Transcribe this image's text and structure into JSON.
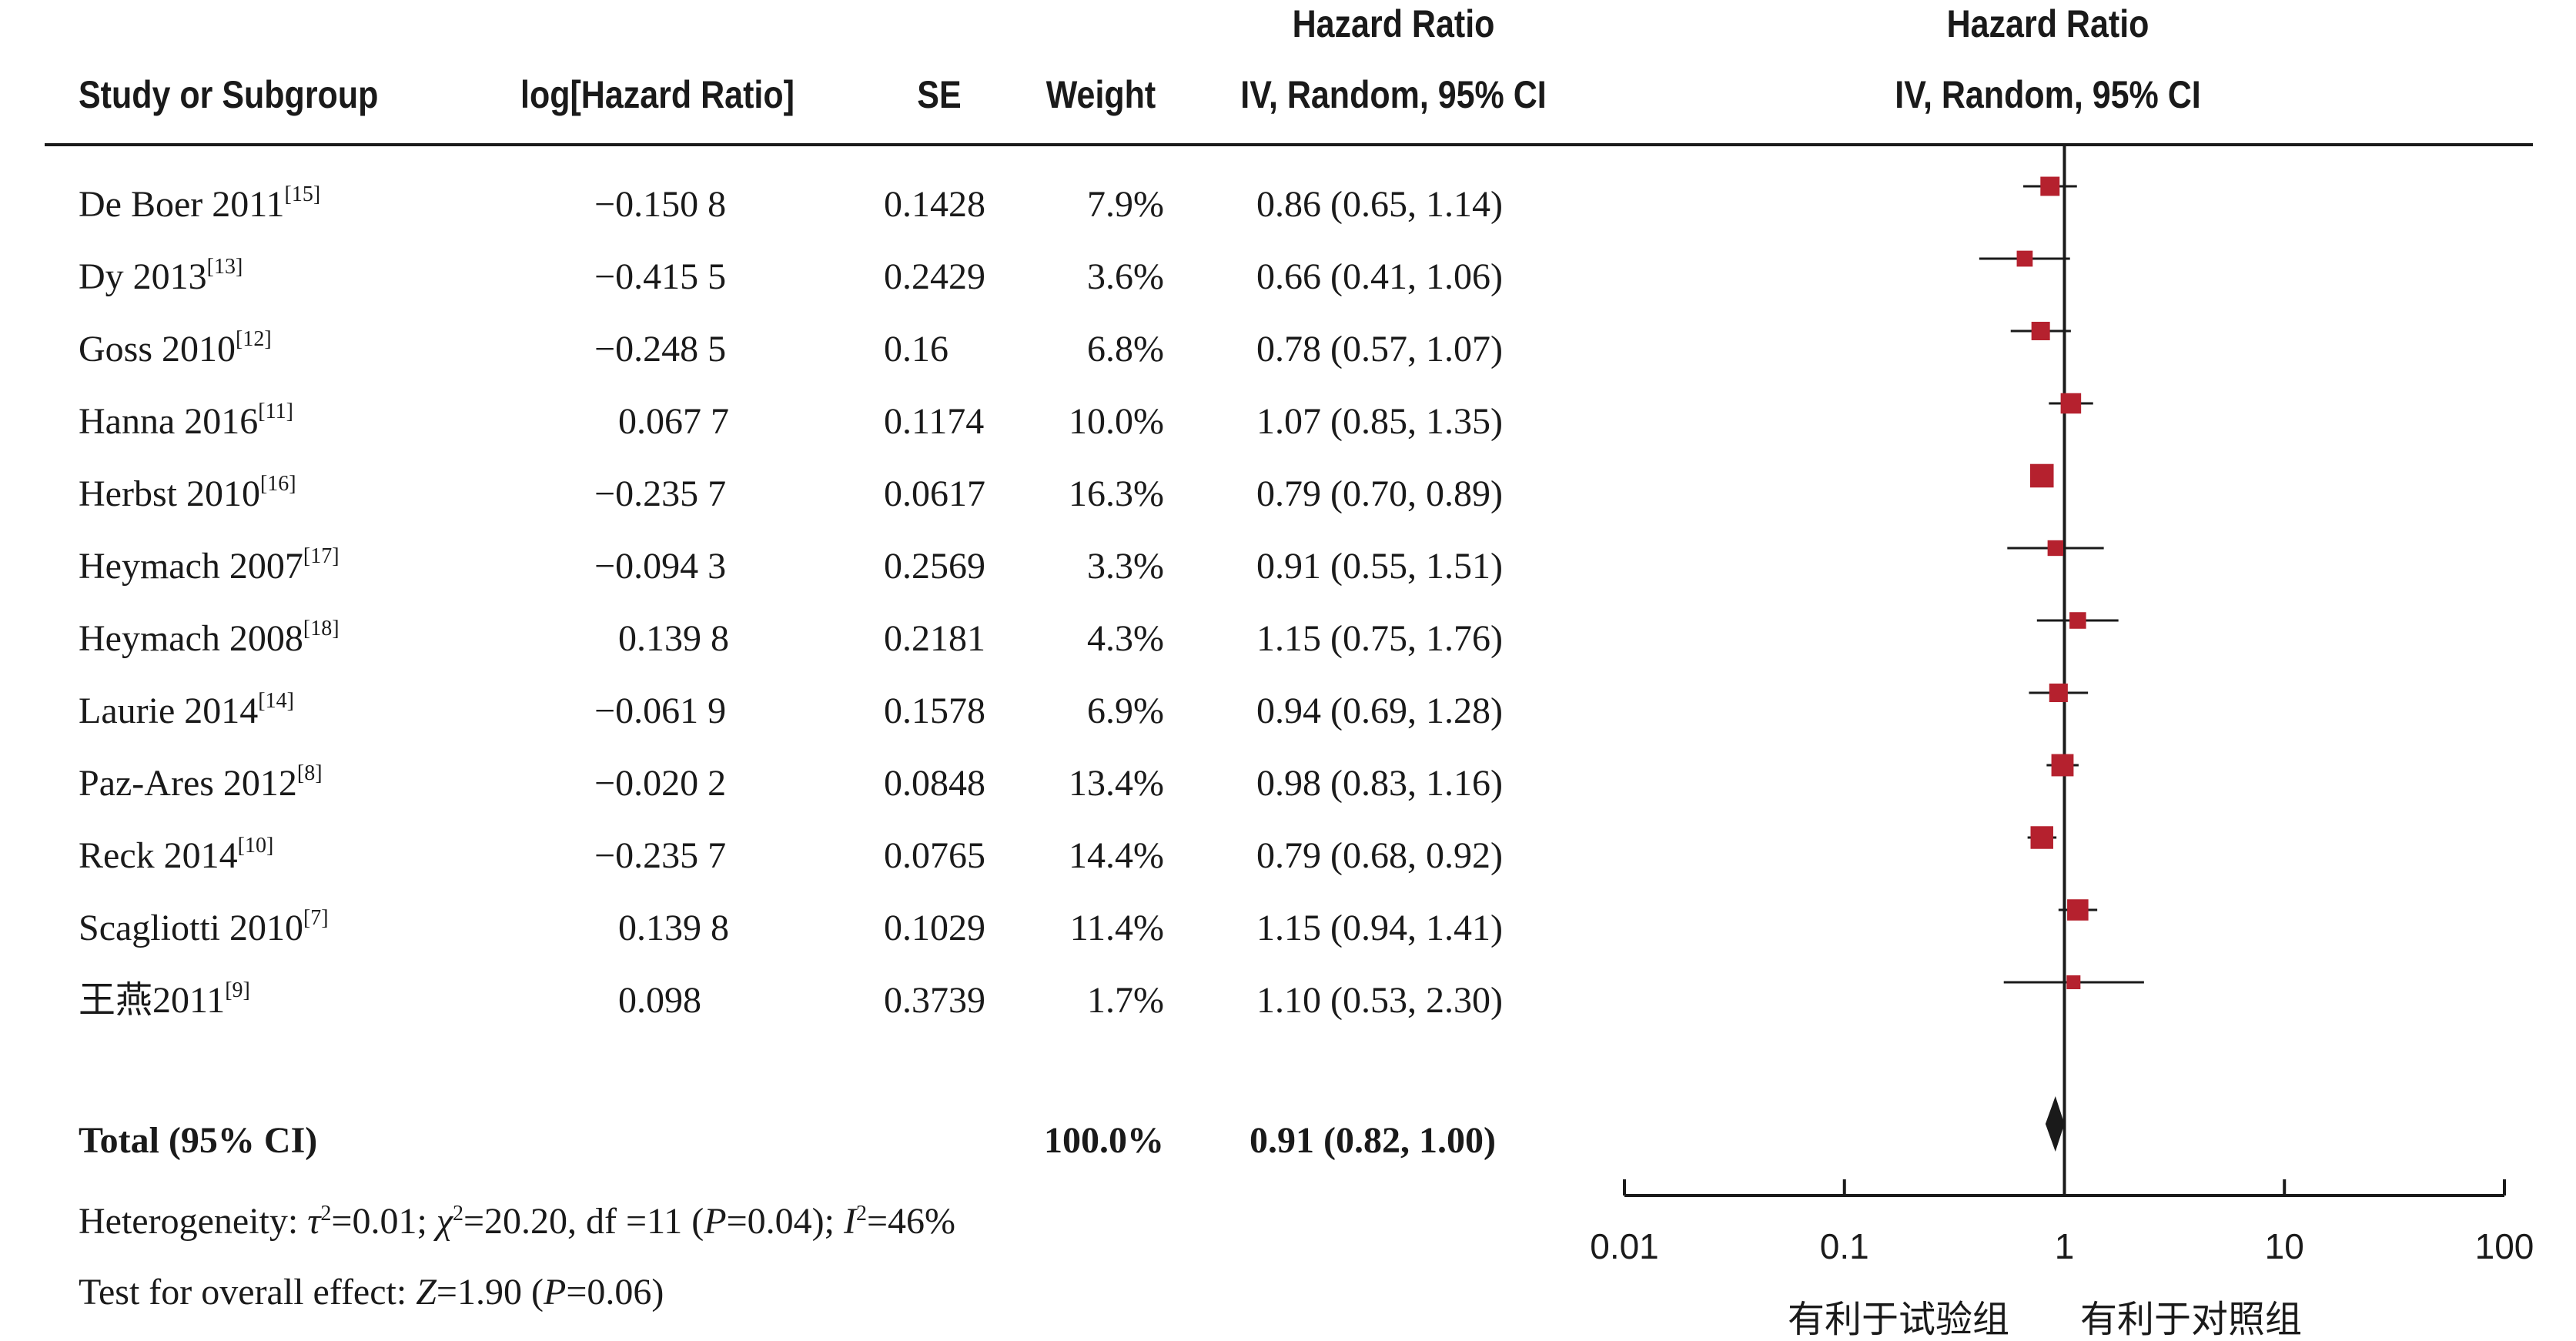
{
  "chart_data": {
    "type": "forest",
    "headers": {
      "study": "Study or Subgroup",
      "loghr": "log[Hazard Ratio]",
      "se": "SE",
      "weight": "Weight",
      "ci_title": "Hazard Ratio",
      "ci_method": "IV, Random, 95% CI",
      "plot_title": "Hazard Ratio",
      "plot_method": "IV, Random, 95% CI"
    },
    "studies": [
      {
        "name": "De Boer 2011",
        "ref": "[15]",
        "loghr": "−0.150 8",
        "se": "0.1428",
        "weight": "7.9%",
        "ci": "0.86 (0.65, 1.14)",
        "hr": 0.86,
        "lo": 0.65,
        "hi": 1.14,
        "w": 7.9
      },
      {
        "name": "Dy 2013",
        "ref": "[13]",
        "loghr": "−0.415 5",
        "se": "0.2429",
        "weight": "3.6%",
        "ci": "0.66 (0.41, 1.06)",
        "hr": 0.66,
        "lo": 0.41,
        "hi": 1.06,
        "w": 3.6
      },
      {
        "name": "Goss 2010",
        "ref": "[12]",
        "loghr": "−0.248 5",
        "se": "0.16",
        "weight": "6.8%",
        "ci": "0.78 (0.57, 1.07)",
        "hr": 0.78,
        "lo": 0.57,
        "hi": 1.07,
        "w": 6.8
      },
      {
        "name": "Hanna 2016",
        "ref": "[11]",
        "loghr": "0.067 7",
        "se": "0.1174",
        "weight": "10.0%",
        "ci": "1.07 (0.85, 1.35)",
        "hr": 1.07,
        "lo": 0.85,
        "hi": 1.35,
        "w": 10.0
      },
      {
        "name": "Herbst 2010",
        "ref": "[16]",
        "loghr": "−0.235 7",
        "se": "0.0617",
        "weight": "16.3%",
        "ci": "0.79 (0.70, 0.89)",
        "hr": 0.79,
        "lo": 0.7,
        "hi": 0.89,
        "w": 16.3
      },
      {
        "name": "Heymach 2007",
        "ref": "[17]",
        "loghr": "−0.094 3",
        "se": "0.2569",
        "weight": "3.3%",
        "ci": "0.91 (0.55, 1.51)",
        "hr": 0.91,
        "lo": 0.55,
        "hi": 1.51,
        "w": 3.3
      },
      {
        "name": "Heymach 2008",
        "ref": "[18]",
        "loghr": "0.139 8",
        "se": "0.2181",
        "weight": "4.3%",
        "ci": "1.15 (0.75, 1.76)",
        "hr": 1.15,
        "lo": 0.75,
        "hi": 1.76,
        "w": 4.3
      },
      {
        "name": "Laurie 2014",
        "ref": "[14]",
        "loghr": "−0.061 9",
        "se": "0.1578",
        "weight": "6.9%",
        "ci": "0.94 (0.69, 1.28)",
        "hr": 0.94,
        "lo": 0.69,
        "hi": 1.28,
        "w": 6.9
      },
      {
        "name": "Paz-Ares 2012",
        "ref": "[8]",
        "loghr": "−0.020 2",
        "se": "0.0848",
        "weight": "13.4%",
        "ci": "0.98 (0.83, 1.16)",
        "hr": 0.98,
        "lo": 0.83,
        "hi": 1.16,
        "w": 13.4
      },
      {
        "name": "Reck 2014",
        "ref": "[10]",
        "loghr": "−0.235 7",
        "se": "0.0765",
        "weight": "14.4%",
        "ci": "0.79 (0.68, 0.92)",
        "hr": 0.79,
        "lo": 0.68,
        "hi": 0.92,
        "w": 14.4
      },
      {
        "name": "Scagliotti 2010",
        "ref": "[7]",
        "loghr": "0.139 8",
        "se": "0.1029",
        "weight": "11.4%",
        "ci": "1.15 (0.94, 1.41)",
        "hr": 1.15,
        "lo": 0.94,
        "hi": 1.41,
        "w": 11.4
      },
      {
        "name": "王燕2011",
        "ref": "[9]",
        "loghr": "0.098",
        "se": "0.3739",
        "weight": "1.7%",
        "ci": "1.10 (0.53, 2.30)",
        "hr": 1.1,
        "lo": 0.53,
        "hi": 2.3,
        "w": 1.7
      }
    ],
    "total": {
      "label": "Total (95% CI)",
      "weight": "100.0%",
      "ci": "0.91 (0.82, 1.00)",
      "hr": 0.91,
      "lo": 0.82,
      "hi": 1.0
    },
    "heterogeneity": {
      "prefix": "Heterogeneity: ",
      "tau": "τ",
      "tau_val": "=0.01; ",
      "chi": "χ",
      "chi_val": "=20.20, df =11 (",
      "p": "P",
      "p_val": "=0.04); ",
      "i": "I",
      "i_val": "=46%",
      "sup": "2"
    },
    "overall": {
      "prefix": "Test for overall effect: ",
      "z": "Z",
      "z_val": "=1.90 (",
      "p": "P",
      "p_val": "=0.06)"
    },
    "x_axis": {
      "scale": "log",
      "ticks": [
        0.01,
        0.1,
        1,
        10,
        100
      ],
      "tick_labels": [
        "0.01",
        "0.1",
        "1",
        "10",
        "100"
      ],
      "range": [
        0.01,
        100
      ]
    },
    "favours_left": "有利于试验组",
    "favours_right": "有利于对照组",
    "colors": {
      "marker": "#b5212e",
      "line": "#1a1a1a"
    }
  }
}
